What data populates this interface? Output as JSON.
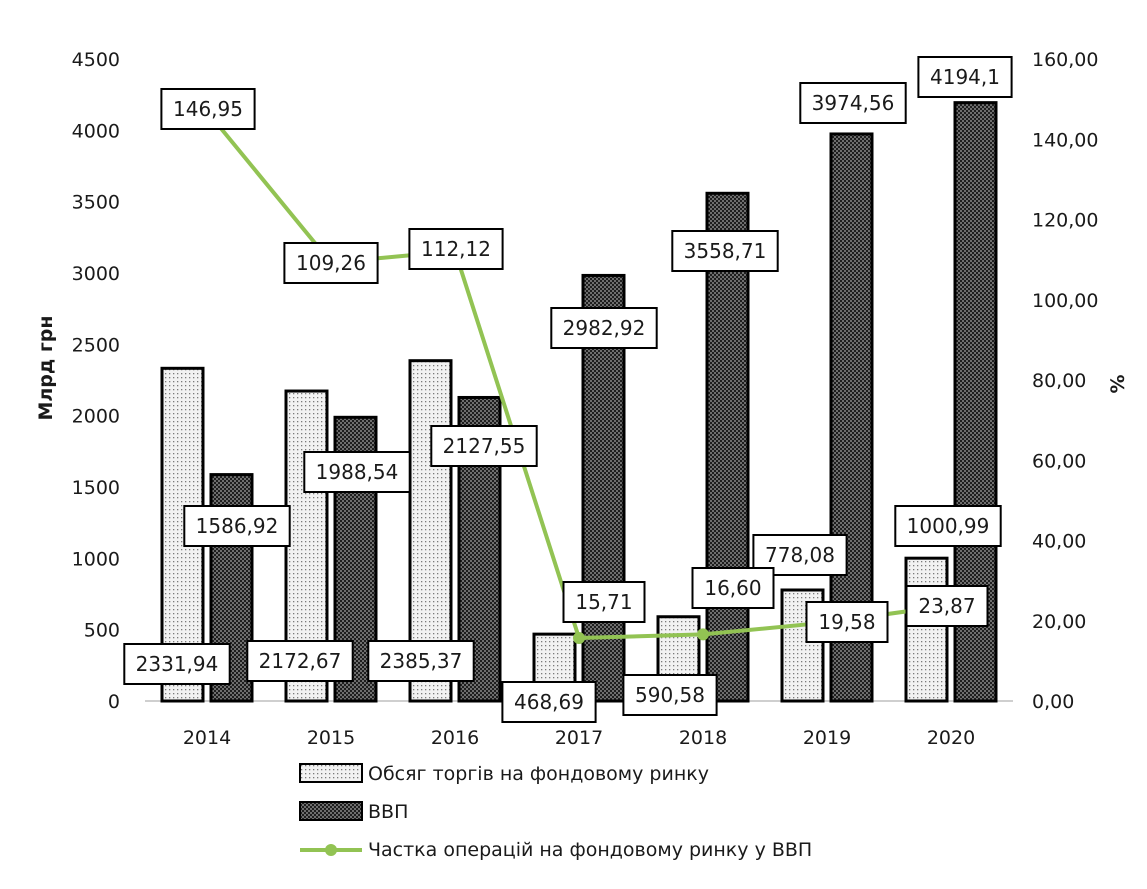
{
  "chart_data": {
    "type": "bar",
    "categories": [
      "2014",
      "2015",
      "2016",
      "2017",
      "2018",
      "2019",
      "2020"
    ],
    "series": [
      {
        "name": "Обсяг торгів на фондовому ринку",
        "axis": "left",
        "kind": "bar",
        "values": [
          2331.94,
          2172.67,
          2385.37,
          468.69,
          590.58,
          778.08,
          1000.99
        ],
        "labels": [
          "2331,94",
          "2172,67",
          "2385,37",
          "468,69",
          "590,58",
          "778,08",
          "1000,99"
        ]
      },
      {
        "name": "ВВП",
        "axis": "left",
        "kind": "bar",
        "values": [
          1586.92,
          1988.54,
          2127.55,
          2982.92,
          3558.71,
          3974.56,
          4194.1
        ],
        "labels": [
          "1586,92",
          "1988,54",
          "2127,55",
          "2982,92",
          "3558,71",
          "3974,56",
          "4194,1"
        ]
      },
      {
        "name": "Частка операцій на фондовому ринку у ВВП",
        "axis": "right",
        "kind": "line",
        "values": [
          146.95,
          109.26,
          112.12,
          15.71,
          16.6,
          19.58,
          23.87
        ],
        "labels": [
          "146,95",
          "109,26",
          "112,12",
          "15,71",
          "16,60",
          "19,58",
          "23,87"
        ]
      }
    ],
    "ylabel": "Млрд грн",
    "y2label": "%",
    "ylim": [
      0,
      4500
    ],
    "y2lim": [
      0,
      160
    ],
    "y_ticks": [
      "0",
      "500",
      "1000",
      "1500",
      "2000",
      "2500",
      "3000",
      "3500",
      "4000",
      "4500"
    ],
    "y2_ticks": [
      "0,00",
      "20,00",
      "40,00",
      "60,00",
      "80,00",
      "100,00",
      "120,00",
      "140,00",
      "160,00"
    ],
    "grid": false,
    "legend_position": "bottom",
    "colors": {
      "bar1_fill": "#f2f2f2",
      "bar1_dots": "#7a7a7a",
      "bar2_fill": "#6e6e6e",
      "bar2_dots": "#1e1e1e",
      "line": "#92c353",
      "border": "#000000"
    }
  }
}
